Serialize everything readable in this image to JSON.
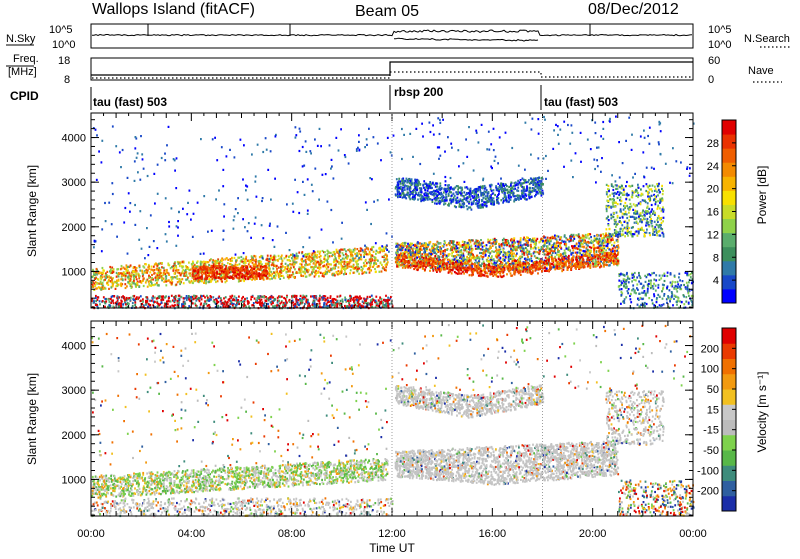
{
  "header": {
    "station": "Wallops Island (fitACF)",
    "beam": "Beam 05",
    "date": "08/Dec/2012"
  },
  "labels": {
    "nsky": "N.Sky",
    "nsearch": "N.Search",
    "freq_line1": "Freq.",
    "freq_line2": "[MHz]",
    "nave": "Nave",
    "cpid": "CPID",
    "time_axis": "Time UT",
    "yaxis": "Slant Range [km]",
    "power_cb": "Power [dB]",
    "velocity_cb": "Velocity [m s⁻¹]"
  },
  "noise_panel": {
    "left_ticks": [
      "10^5",
      "10^0"
    ],
    "right_ticks": [
      "10^5",
      "10^0"
    ]
  },
  "freq_panel": {
    "left_ticks": [
      "18",
      "8"
    ],
    "right_ticks": [
      "60",
      "0"
    ]
  },
  "cpid_panel": {
    "segments": [
      {
        "label": "tau (fast) 503",
        "start_hour": 0
      },
      {
        "label": "rbsp 200",
        "start_hour": 12
      },
      {
        "label": "tau (fast) 503",
        "start_hour": 18
      }
    ]
  },
  "chart_data": [
    {
      "type": "heatmap",
      "panel": "power",
      "xlabel": "",
      "ylabel": "Slant Range [km]",
      "xlim_hours": [
        0,
        24
      ],
      "ylim_km": [
        180,
        4550
      ],
      "x_tick_labels": [
        "00:00",
        "04:00",
        "08:00",
        "12:00",
        "16:00",
        "20:00",
        "00:00"
      ],
      "y_ticks": [
        1000,
        2000,
        3000,
        4000
      ],
      "colorbar": {
        "label": "Power [dB]",
        "ticks": [
          4,
          8,
          12,
          16,
          20,
          24,
          28
        ],
        "colors": [
          "#0000ff",
          "#1848c8",
          "#2f7aa8",
          "#3c8f5c",
          "#5aad6c",
          "#8fd24a",
          "#c8dc28",
          "#f8e000",
          "#f7b300",
          "#f38a00",
          "#ef5e00",
          "#ea3200",
          "#e00000"
        ]
      }
    },
    {
      "type": "heatmap",
      "panel": "velocity",
      "xlabel": "Time UT",
      "ylabel": "Slant Range [km]",
      "xlim_hours": [
        0,
        24
      ],
      "ylim_km": [
        180,
        4550
      ],
      "x_tick_labels": [
        "00:00",
        "04:00",
        "08:00",
        "12:00",
        "16:00",
        "20:00",
        "00:00"
      ],
      "y_ticks": [
        1000,
        2000,
        3000,
        4000
      ],
      "colorbar": {
        "label": "Velocity [m s⁻¹]",
        "ticks": [
          200,
          100,
          50,
          15,
          -15,
          -50,
          -100,
          -200
        ],
        "colors": [
          "#1b2ea8",
          "#2f5fa0",
          "#3e8c7c",
          "#58b848",
          "#7ed24c",
          "#bcbcbc",
          "#c8c8c8",
          "#f2c020",
          "#f29a10",
          "#f07000",
          "#ea3a00",
          "#e00000"
        ]
      }
    }
  ]
}
